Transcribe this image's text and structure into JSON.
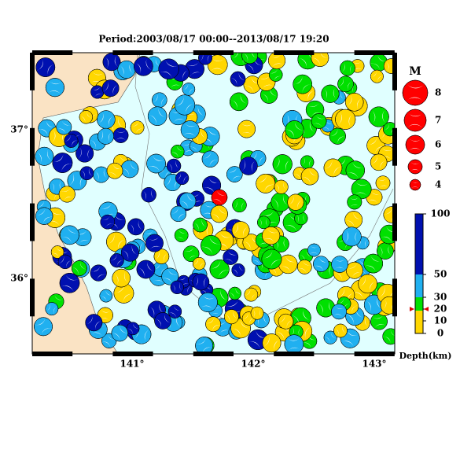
{
  "title": "Period:2003/08/17 00:00--2013/08/17 19:20",
  "map": {
    "lon_labels": [
      "141°",
      "142°",
      "143°"
    ],
    "lat_labels": [
      "37°",
      "36°"
    ]
  },
  "magnitude_legend": {
    "title": "M",
    "labels": [
      "8",
      "7",
      "6",
      "5",
      "4"
    ]
  },
  "depth_scale": {
    "ticks": [
      "100",
      "50",
      "30",
      "20",
      "10",
      "0"
    ],
    "label": "Depth(km)"
  }
}
